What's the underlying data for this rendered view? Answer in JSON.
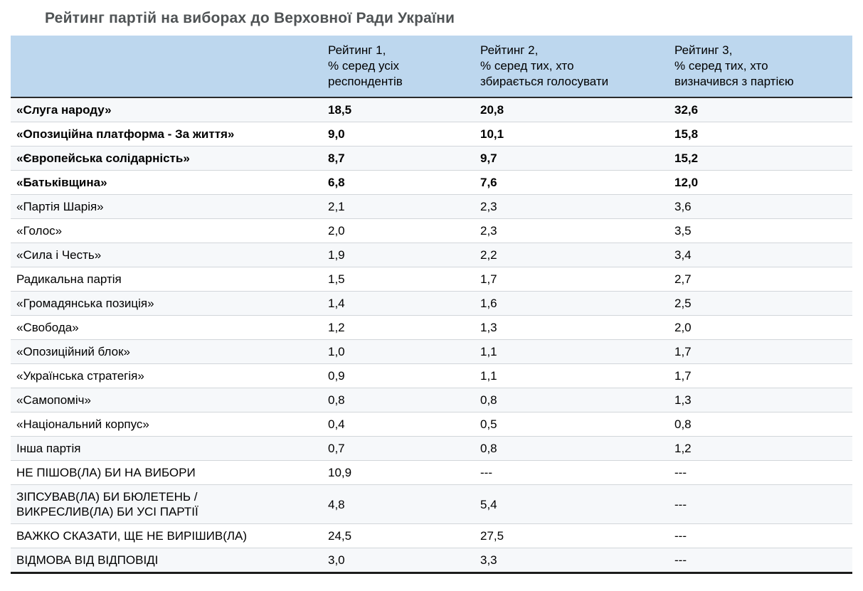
{
  "colors": {
    "header_bg": "#BDD7EE",
    "title_text": "#4F5355",
    "row_stripe": "#F6F8FA",
    "row_divider": "#D2D6DA",
    "strong_border": "#1C1C1C"
  },
  "chart_data": {
    "type": "table",
    "title": "Рейтинг партій на виборах до Верховної Ради України",
    "columns": [
      "",
      "Рейтинг 1,\n% серед усіх\nреспондентів",
      "Рейтинг 2,\n% серед тих, хто\nзбирається голосувати",
      "Рейтинг 3,\n% серед тих, хто\nвизначився з партією"
    ],
    "rows": [
      {
        "label": "«Слуга народу»",
        "bold": true,
        "values": [
          "18,5",
          "20,8",
          "32,6"
        ]
      },
      {
        "label": "«Опозиційна платформа - За життя»",
        "bold": true,
        "values": [
          "9,0",
          "10,1",
          "15,8"
        ]
      },
      {
        "label": "«Європейська солідарність»",
        "bold": true,
        "values": [
          "8,7",
          "9,7",
          "15,2"
        ]
      },
      {
        "label": "«Батьківщина»",
        "bold": true,
        "values": [
          "6,8",
          "7,6",
          "12,0"
        ]
      },
      {
        "label": "«Партія Шарія»",
        "bold": false,
        "values": [
          "2,1",
          "2,3",
          "3,6"
        ]
      },
      {
        "label": "«Голос»",
        "bold": false,
        "values": [
          "2,0",
          "2,3",
          "3,5"
        ]
      },
      {
        "label": "«Сила і Честь»",
        "bold": false,
        "values": [
          "1,9",
          "2,2",
          "3,4"
        ]
      },
      {
        "label": "Радикальна партія",
        "bold": false,
        "values": [
          "1,5",
          "1,7",
          "2,7"
        ]
      },
      {
        "label": "«Громадянська позиція»",
        "bold": false,
        "values": [
          "1,4",
          "1,6",
          "2,5"
        ]
      },
      {
        "label": "«Свобода»",
        "bold": false,
        "values": [
          "1,2",
          "1,3",
          "2,0"
        ]
      },
      {
        "label": "«Опозиційний блок»",
        "bold": false,
        "values": [
          "1,0",
          "1,1",
          "1,7"
        ]
      },
      {
        "label": "«Українська стратегія»",
        "bold": false,
        "values": [
          "0,9",
          "1,1",
          "1,7"
        ]
      },
      {
        "label": "«Самопоміч»",
        "bold": false,
        "values": [
          "0,8",
          "0,8",
          "1,3"
        ]
      },
      {
        "label": "«Національний корпус»",
        "bold": false,
        "values": [
          "0,4",
          "0,5",
          "0,8"
        ]
      },
      {
        "label": "Інша партія",
        "bold": false,
        "values": [
          "0,7",
          "0,8",
          "1,2"
        ]
      },
      {
        "label": "НЕ ПІШОВ(ЛА) БИ НА ВИБОРИ",
        "bold": false,
        "values": [
          "10,9",
          "---",
          "---"
        ]
      },
      {
        "label": "ЗІПСУВАВ(ЛА) БИ БЮЛЕТЕНЬ /\nВИКРЕСЛИВ(ЛА) БИ УСІ ПАРТІЇ",
        "bold": false,
        "values": [
          "4,8",
          "5,4",
          "---"
        ]
      },
      {
        "label": "ВАЖКО СКАЗАТИ, ЩЕ НЕ ВИРІШИВ(ЛА)",
        "bold": false,
        "values": [
          "24,5",
          "27,5",
          "---"
        ]
      },
      {
        "label": "ВІДМОВА ВІД ВІДПОВІДІ",
        "bold": false,
        "values": [
          "3,0",
          "3,3",
          "---"
        ]
      }
    ]
  }
}
